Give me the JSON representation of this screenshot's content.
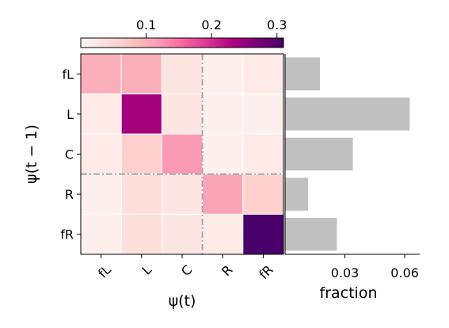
{
  "chart_data": [
    {
      "type": "heatmap",
      "title": "",
      "xlabel": "ψ(t)",
      "ylabel": "ψ(t − 1)",
      "x_categories": [
        "fL",
        "L",
        "C",
        "R",
        "fR"
      ],
      "y_categories": [
        "fL",
        "L",
        "C",
        "R",
        "fR"
      ],
      "values": [
        [
          0.1,
          0.1,
          0.03,
          0.01,
          0.02
        ],
        [
          0.02,
          0.24,
          0.03,
          0.01,
          0.01
        ],
        [
          0.02,
          0.06,
          0.12,
          0.01,
          0.02
        ],
        [
          0.01,
          0.04,
          0.03,
          0.11,
          0.06
        ],
        [
          0.01,
          0.04,
          0.03,
          0.02,
          0.32
        ]
      ],
      "colorbar": {
        "min": 0.0,
        "max": 0.31,
        "ticks": [
          0.1,
          0.2,
          0.3
        ],
        "tick_labels": [
          "0.1",
          "0.2",
          "0.3"
        ],
        "colormap": "RdPu",
        "placement": "top"
      },
      "divider_after_index": 2,
      "divider_color": "#aaaaaa"
    },
    {
      "type": "bar",
      "orientation": "horizontal",
      "categories": [
        "fL",
        "L",
        "C",
        "R",
        "fR"
      ],
      "values": [
        0.0175,
        0.0625,
        0.034,
        0.0115,
        0.026
      ],
      "xlabel": "fraction",
      "xlim": [
        0,
        0.0675
      ],
      "xticks": [
        0.03,
        0.06
      ],
      "xtick_labels": [
        "0.03",
        "0.06"
      ],
      "bar_color": "#c0c0c0"
    }
  ]
}
